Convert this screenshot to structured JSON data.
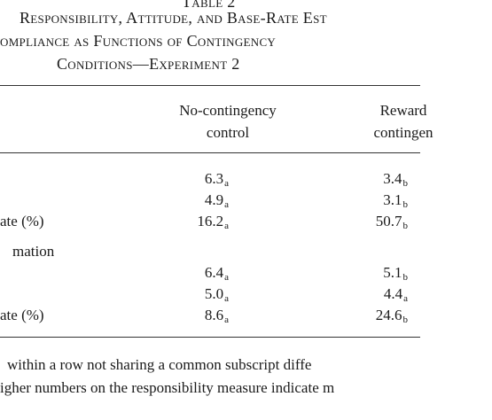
{
  "table": {
    "caption": "Table 2",
    "title": [
      "Responsibility, Attitude, and Base-Rate Est",
      "ompliance as Functions of Contingency",
      "Conditions—Experiment 2"
    ],
    "columns": [
      [
        "No-contingency",
        "control"
      ],
      [
        "Reward",
        "contingen"
      ]
    ],
    "rows": [
      {
        "cells": [
          {
            "value": "6.3",
            "sub": "a"
          },
          {
            "value": "3.4",
            "sub": "b"
          }
        ]
      },
      {
        "cells": [
          {
            "value": "4.9",
            "sub": "a"
          },
          {
            "value": "3.1",
            "sub": "b"
          }
        ]
      },
      {
        "label": "ate (%)",
        "cells": [
          {
            "value": "16.2",
            "sub": "a"
          },
          {
            "value": "50.7",
            "sub": "b"
          }
        ]
      },
      {
        "section": "mation"
      },
      {
        "cells": [
          {
            "value": "6.4",
            "sub": "a"
          },
          {
            "value": "5.1",
            "sub": "b"
          }
        ]
      },
      {
        "cells": [
          {
            "value": "5.0",
            "sub": "a"
          },
          {
            "value": "4.4",
            "sub": "a"
          }
        ]
      },
      {
        "label": "ate (%)",
        "cells": [
          {
            "value": "8.6",
            "sub": "a"
          },
          {
            "value": "24.6",
            "sub": "b"
          }
        ]
      }
    ],
    "footnote": [
      "within a row not sharing a common subscript diffe",
      "igher numbers on the responsibility measure indicate m"
    ]
  }
}
